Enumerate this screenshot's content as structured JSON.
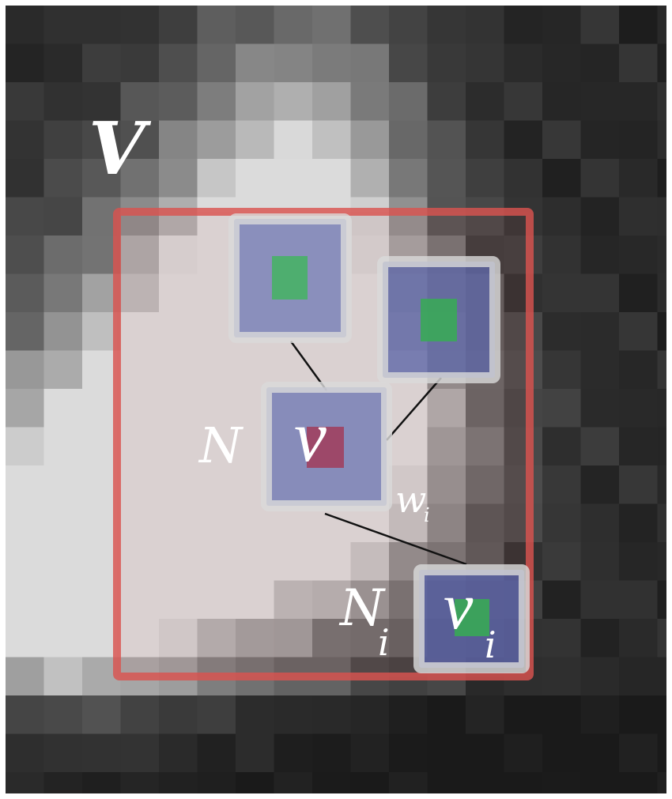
{
  "labels": {
    "volume": "V",
    "neighborhood": "N",
    "voxel": "v",
    "weight_base": "w",
    "weight_sub": "i",
    "neighborhood_i_base": "N",
    "neighborhood_i_sub": "i",
    "voxel_i_base": "v",
    "voxel_i_sub": "i"
  },
  "colors": {
    "search_window": "#d9534f",
    "patch_fill": "#6c75b8",
    "patch_border": "#d8d8d8",
    "candidate_center": "#3cb35a",
    "target_center": "#a04060",
    "connector": "#111111"
  }
}
